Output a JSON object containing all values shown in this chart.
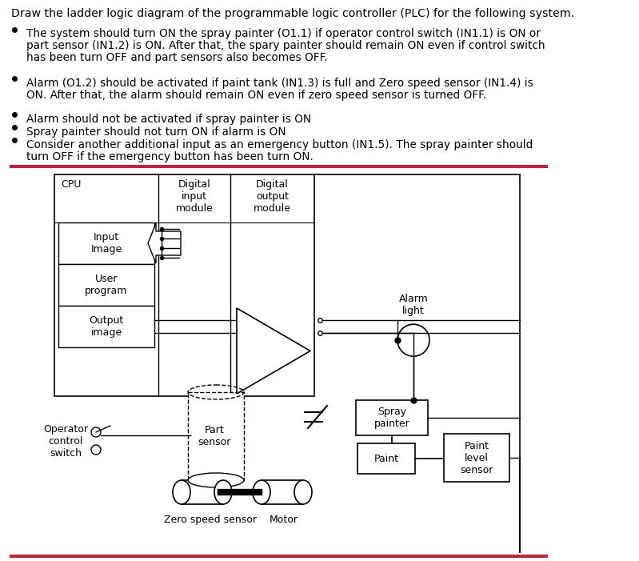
{
  "title_text": "Draw the ladder logic diagram of the programmable logic controller (PLC) for the following system.",
  "bullet1a": "The system should turn ON the spray painter (O1.1) if operator control switch (IN1.1) is ON or",
  "bullet1b": "part sensor (IN1.2) is ON. After that, the spary painter should remain ON even if control switch",
  "bullet1c": "has been turn OFF and part sensors also becomes OFF.",
  "bullet2a": "Alarm (O1.2) should be activated if paint tank (IN1.3) is full and Zero speed sensor (IN1.4) is",
  "bullet2b": "ON. After that, the alarm should remain ON even if zero speed sensor is turned OFF.",
  "bullet3": "Alarm should not be activated if spray painter is ON",
  "bullet4": "Spray painter should not turn ON if alarm is ON",
  "bullet5a": "Consider another additional input as an emergency button (IN1.5). The spray painter should",
  "bullet5b": "turn OFF if the emergency button has been turn ON.",
  "bg_color": "#ffffff",
  "text_color": "#000000",
  "red_color": "#b5293a"
}
